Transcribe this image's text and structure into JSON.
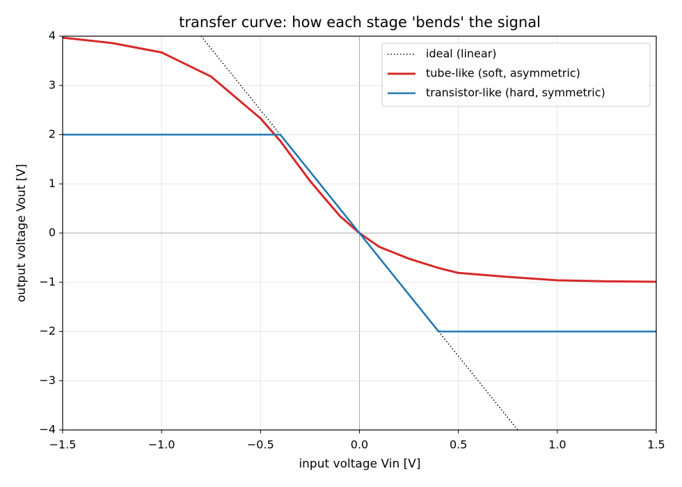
{
  "chart_data": {
    "type": "line",
    "title": "transfer curve: how each stage 'bends' the signal",
    "xlabel": "input voltage Vin [V]",
    "ylabel": "output voltage Vout [V]",
    "xlim": [
      -1.5,
      1.5
    ],
    "ylim": [
      -4,
      4
    ],
    "xticks": [
      {
        "value": -1.5,
        "label": "−1.5"
      },
      {
        "value": -1.0,
        "label": "−1.0"
      },
      {
        "value": -0.5,
        "label": "−0.5"
      },
      {
        "value": 0,
        "label": "0.0"
      },
      {
        "value": 0.5,
        "label": "0.5"
      },
      {
        "value": 1.0,
        "label": "1.0"
      },
      {
        "value": 1.5,
        "label": "1.5"
      }
    ],
    "yticks": [
      {
        "value": -4,
        "label": "−4"
      },
      {
        "value": -3,
        "label": "−3"
      },
      {
        "value": -2,
        "label": "−2"
      },
      {
        "value": -1,
        "label": "−1"
      },
      0,
      1,
      2,
      3,
      4
    ],
    "grid": true,
    "legend": "upper right",
    "series": [
      {
        "name": "ideal (linear)",
        "color": "#000000",
        "style": "dotted",
        "x": [
          -0.8,
          0.8
        ],
        "values": [
          4,
          -4
        ]
      },
      {
        "name": "tube-like (soft, asymmetric)",
        "color": "#d62728",
        "style": "solid",
        "x": [
          -1.5,
          -1.25,
          -1.0,
          -0.75,
          -0.5,
          -0.4,
          -0.25,
          -0.1,
          0,
          0.1,
          0.25,
          0.4,
          0.5,
          0.75,
          1.0,
          1.25,
          1.5
        ],
        "values": [
          3.97,
          3.86,
          3.67,
          3.18,
          2.33,
          1.87,
          1.06,
          0.35,
          0,
          -0.28,
          -0.52,
          -0.71,
          -0.81,
          -0.89,
          -0.96,
          -0.98,
          -0.99
        ]
      },
      {
        "name": "transistor-like (hard, symmetric)",
        "color": "#1f77b4",
        "style": "solid",
        "x": [
          -1.5,
          -0.4,
          0.4,
          1.5
        ],
        "values": [
          2,
          2,
          -2,
          -2
        ]
      }
    ]
  }
}
